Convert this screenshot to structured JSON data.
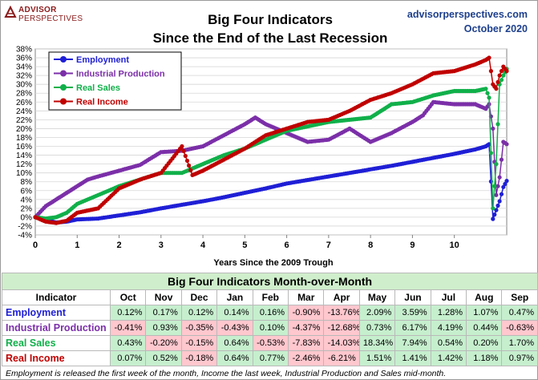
{
  "header": {
    "logo_line1": "ADVISOR",
    "logo_line2": "PERSPECTIVES",
    "title_line1": "Big Four Indicators",
    "title_line2": "Since the End of the Last Recession",
    "site": "advisorperspectives.com",
    "date": "October 2020"
  },
  "chart_data": {
    "type": "line",
    "title": "Big Four Indicators Since the End of the Last Recession",
    "xlabel": "Years Since the 2009 Trough",
    "ylabel": "",
    "xlim": [
      0,
      11.25
    ],
    "ylim": [
      -4,
      38
    ],
    "x_ticks": [
      "0",
      "1",
      "2",
      "3",
      "4",
      "5",
      "6",
      "7",
      "8",
      "9",
      "10"
    ],
    "y_ticks": [
      "-4%",
      "-2%",
      "0%",
      "2%",
      "4%",
      "6%",
      "8%",
      "10%",
      "12%",
      "14%",
      "16%",
      "18%",
      "20%",
      "22%",
      "24%",
      "26%",
      "28%",
      "30%",
      "32%",
      "34%",
      "36%",
      "38%"
    ],
    "legend_position": "top-left",
    "grid": true,
    "series": [
      {
        "name": "Employment",
        "color": "#1f1fd6",
        "points": [
          [
            0,
            0
          ],
          [
            0.25,
            -0.6
          ],
          [
            0.5,
            -1.2
          ],
          [
            0.75,
            -1.0
          ],
          [
            1,
            -0.5
          ],
          [
            1.5,
            -0.3
          ],
          [
            2,
            0.4
          ],
          [
            2.5,
            1.1
          ],
          [
            3,
            2.0
          ],
          [
            3.5,
            2.8
          ],
          [
            4,
            3.6
          ],
          [
            4.5,
            4.5
          ],
          [
            5,
            5.5
          ],
          [
            5.5,
            6.5
          ],
          [
            6,
            7.6
          ],
          [
            6.5,
            8.4
          ],
          [
            7,
            9.2
          ],
          [
            7.5,
            10.0
          ],
          [
            8,
            10.8
          ],
          [
            8.5,
            11.6
          ],
          [
            9,
            12.5
          ],
          [
            9.5,
            13.4
          ],
          [
            10,
            14.3
          ],
          [
            10.5,
            15.3
          ],
          [
            10.75,
            16.0
          ],
          [
            10.83,
            16.5
          ],
          [
            10.92,
            -0.4
          ],
          [
            11.0,
            1.6
          ],
          [
            11.08,
            3.6
          ],
          [
            11.17,
            6.8
          ],
          [
            11.25,
            8.2
          ]
        ]
      },
      {
        "name": "Industrial Production",
        "color": "#7b2fa8",
        "points": [
          [
            0,
            0
          ],
          [
            0.25,
            2.5
          ],
          [
            0.5,
            4.0
          ],
          [
            0.75,
            5.5
          ],
          [
            1,
            7.0
          ],
          [
            1.25,
            8.5
          ],
          [
            1.5,
            9.2
          ],
          [
            2,
            10.5
          ],
          [
            2.5,
            11.8
          ],
          [
            3,
            14.7
          ],
          [
            3.5,
            15.0
          ],
          [
            4,
            16.0
          ],
          [
            4.5,
            18.5
          ],
          [
            5,
            21.0
          ],
          [
            5.25,
            22.5
          ],
          [
            5.5,
            21.0
          ],
          [
            6,
            19.0
          ],
          [
            6.5,
            17.0
          ],
          [
            7,
            17.5
          ],
          [
            7.5,
            20.0
          ],
          [
            8,
            17.0
          ],
          [
            8.5,
            19.0
          ],
          [
            9,
            21.5
          ],
          [
            9.25,
            23.0
          ],
          [
            9.5,
            26.0
          ],
          [
            10,
            25.5
          ],
          [
            10.5,
            25.5
          ],
          [
            10.75,
            24.5
          ],
          [
            10.83,
            25.5
          ],
          [
            10.92,
            20.0
          ],
          [
            11.0,
            5.0
          ],
          [
            11.08,
            9.0
          ],
          [
            11.17,
            17.0
          ],
          [
            11.25,
            16.5
          ]
        ]
      },
      {
        "name": "Real Sales",
        "color": "#10b04a",
        "points": [
          [
            0,
            0
          ],
          [
            0.25,
            -0.3
          ],
          [
            0.5,
            0.0
          ],
          [
            0.75,
            1.0
          ],
          [
            1,
            3.0
          ],
          [
            1.5,
            5.0
          ],
          [
            2,
            7.0
          ],
          [
            2.5,
            8.5
          ],
          [
            3,
            10.0
          ],
          [
            3.5,
            10.0
          ],
          [
            4,
            12.0
          ],
          [
            4.5,
            14.0
          ],
          [
            5,
            15.5
          ],
          [
            5.5,
            17.5
          ],
          [
            6,
            19.5
          ],
          [
            6.5,
            20.5
          ],
          [
            7,
            21.5
          ],
          [
            7.5,
            22.0
          ],
          [
            8,
            22.5
          ],
          [
            8.25,
            24.0
          ],
          [
            8.5,
            25.5
          ],
          [
            9,
            26.0
          ],
          [
            9.5,
            27.5
          ],
          [
            10,
            28.5
          ],
          [
            10.5,
            28.5
          ],
          [
            10.75,
            29.0
          ],
          [
            10.83,
            27.0
          ],
          [
            10.92,
            2.0
          ],
          [
            11.0,
            12.0
          ],
          [
            11.08,
            30.0
          ],
          [
            11.17,
            32.0
          ],
          [
            11.25,
            33.5
          ]
        ]
      },
      {
        "name": "Real Income",
        "color": "#c00000",
        "points": [
          [
            0,
            0
          ],
          [
            0.25,
            -1.0
          ],
          [
            0.5,
            -1.3
          ],
          [
            0.75,
            -0.8
          ],
          [
            1,
            1.0
          ],
          [
            1.5,
            2.0
          ],
          [
            2,
            6.5
          ],
          [
            2.5,
            8.5
          ],
          [
            3,
            10.0
          ],
          [
            3.5,
            16.0
          ],
          [
            3.75,
            9.5
          ],
          [
            4,
            10.5
          ],
          [
            4.5,
            13.0
          ],
          [
            5,
            15.5
          ],
          [
            5.5,
            18.5
          ],
          [
            6,
            20.0
          ],
          [
            6.5,
            21.5
          ],
          [
            7,
            22.0
          ],
          [
            7.5,
            24.0
          ],
          [
            8,
            26.5
          ],
          [
            8.5,
            28.0
          ],
          [
            9,
            30.0
          ],
          [
            9.5,
            32.5
          ],
          [
            10,
            33.0
          ],
          [
            10.5,
            34.5
          ],
          [
            10.75,
            35.5
          ],
          [
            10.83,
            36.0
          ],
          [
            10.92,
            30.0
          ],
          [
            11.0,
            29.0
          ],
          [
            11.08,
            32.0
          ],
          [
            11.17,
            34.0
          ],
          [
            11.25,
            33.0
          ]
        ]
      }
    ]
  },
  "table": {
    "title": "Big Four Indicators Month-over-Month",
    "indicator_header": "Indicator",
    "months": [
      "Oct",
      "Nov",
      "Dec",
      "Jan",
      "Feb",
      "Mar",
      "Apr",
      "May",
      "Jun",
      "Jul",
      "Aug",
      "Sep"
    ],
    "rows": [
      {
        "name": "Employment",
        "color": "#1f1fd6",
        "values": [
          "0.12%",
          "0.17%",
          "0.12%",
          "0.14%",
          "0.16%",
          "-0.90%",
          "-13.76%",
          "2.09%",
          "3.59%",
          "1.28%",
          "1.07%",
          "0.47%"
        ]
      },
      {
        "name": "Industrial Production",
        "color": "#7b2fa8",
        "values": [
          "-0.41%",
          "0.93%",
          "-0.35%",
          "-0.43%",
          "0.10%",
          "-4.37%",
          "-12.68%",
          "0.73%",
          "6.17%",
          "4.19%",
          "0.44%",
          "-0.63%"
        ]
      },
      {
        "name": "Real Sales",
        "color": "#10b04a",
        "values": [
          "0.43%",
          "-0.20%",
          "-0.15%",
          "0.64%",
          "-0.53%",
          "-7.83%",
          "-14.03%",
          "18.34%",
          "7.94%",
          "0.54%",
          "0.20%",
          "1.70%"
        ]
      },
      {
        "name": "Real Income",
        "color": "#c00000",
        "values": [
          "0.07%",
          "0.52%",
          "-0.18%",
          "0.64%",
          "0.77%",
          "-2.46%",
          "-6.21%",
          "1.51%",
          "1.41%",
          "1.42%",
          "1.18%",
          "0.97%"
        ]
      }
    ]
  },
  "footnote": "Employment is released the first week of the month, Income the last week, Industrial Production and Sales mid-month."
}
